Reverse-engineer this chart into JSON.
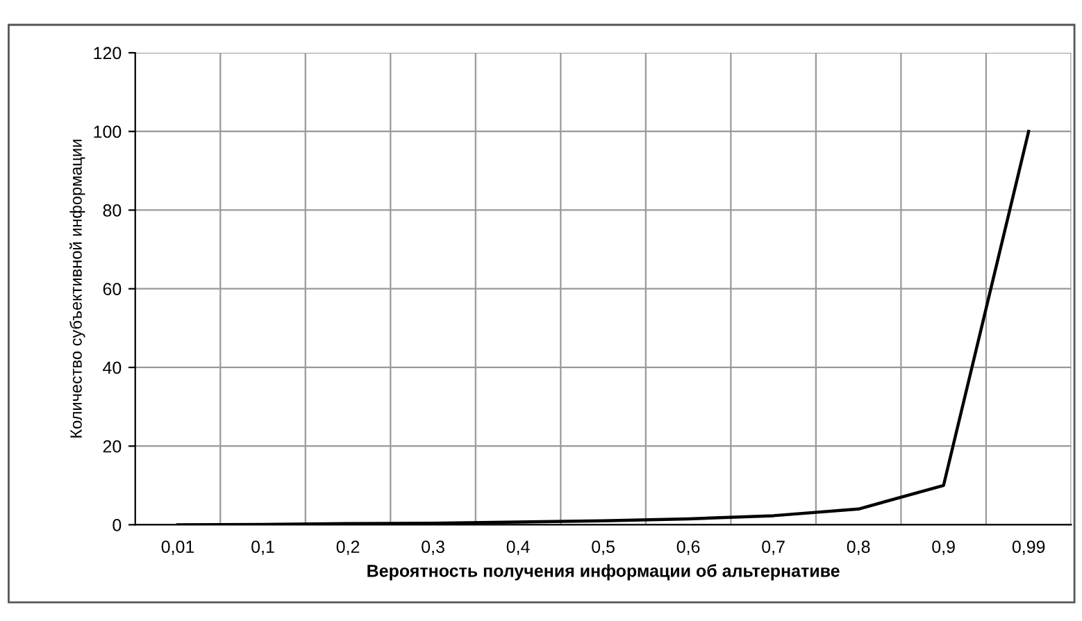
{
  "chart_data": {
    "type": "line",
    "xlabel": "Вероятность получения информации об альтернативе",
    "ylabel": "Количество субъективной информации",
    "categories": [
      "0,01",
      "0,1",
      "0,2",
      "0,3",
      "0,4",
      "0,5",
      "0,6",
      "0,7",
      "0,8",
      "0,9",
      "0,99"
    ],
    "series": [
      {
        "color": "#000000",
        "values": [
          0,
          0.1,
          0.3,
          0.4,
          0.7,
          1,
          1.5,
          2.3,
          4,
          10,
          100
        ]
      }
    ],
    "ylim": [
      0,
      120
    ],
    "yticks": [
      0,
      20,
      40,
      60,
      80,
      100,
      120
    ],
    "grid": true,
    "marker": "none",
    "line_style": "solid"
  }
}
